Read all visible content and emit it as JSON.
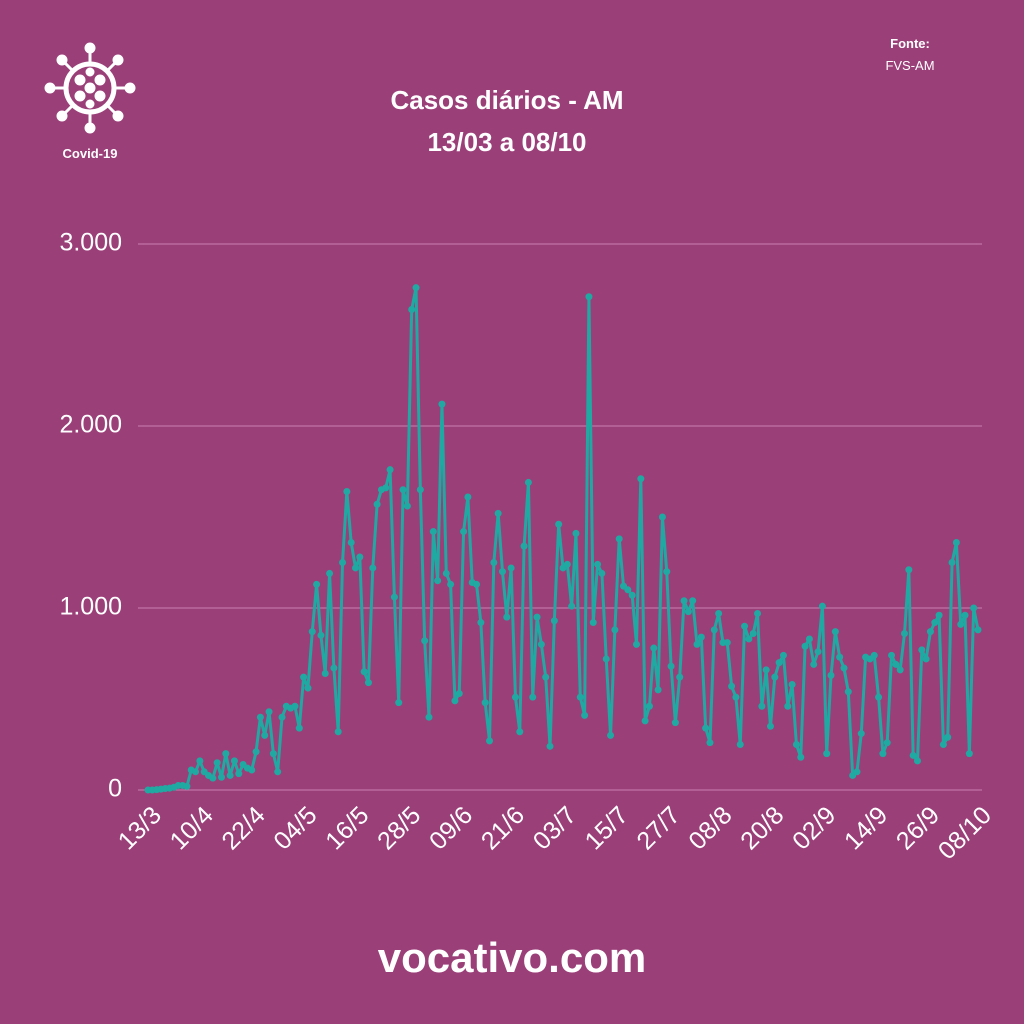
{
  "chart_data": {
    "type": "line",
    "title": "Casos diários - AM",
    "subtitle": "13/03 a 08/10",
    "icon_label": "Covid-19",
    "source_label": "Fonte:",
    "source": "FVS-AM",
    "footer": "vocativo.com",
    "color": "#1fa9a2",
    "grid": true,
    "ylim": [
      0,
      3000
    ],
    "yticks": [
      0,
      {
        "value": 1000,
        "label": "1.000"
      },
      {
        "value": 2000,
        "label": "2.000"
      },
      {
        "value": 3000,
        "label": "3.000"
      }
    ],
    "categories": [
      "13/3",
      null,
      null,
      null,
      null,
      null,
      null,
      null,
      null,
      null,
      null,
      null,
      "10/4",
      null,
      null,
      null,
      null,
      null,
      null,
      null,
      null,
      null,
      null,
      null,
      "22/4",
      null,
      null,
      null,
      null,
      null,
      null,
      null,
      null,
      null,
      null,
      null,
      "04/5",
      null,
      null,
      null,
      null,
      null,
      null,
      null,
      null,
      null,
      null,
      null,
      "16/5",
      null,
      null,
      null,
      null,
      null,
      null,
      null,
      null,
      null,
      null,
      null,
      "28/5",
      null,
      null,
      null,
      null,
      null,
      null,
      null,
      null,
      null,
      null,
      null,
      "09/6",
      null,
      null,
      null,
      null,
      null,
      null,
      null,
      null,
      null,
      null,
      null,
      "21/6",
      null,
      null,
      null,
      null,
      null,
      null,
      null,
      null,
      null,
      null,
      null,
      "03/7",
      null,
      null,
      null,
      null,
      null,
      null,
      null,
      null,
      null,
      null,
      null,
      "15/7",
      null,
      null,
      null,
      null,
      null,
      null,
      null,
      null,
      null,
      null,
      null,
      "27/7",
      null,
      null,
      null,
      null,
      null,
      null,
      null,
      null,
      null,
      null,
      null,
      "08/8",
      null,
      null,
      null,
      null,
      null,
      null,
      null,
      null,
      null,
      null,
      null,
      "20/8",
      null,
      null,
      null,
      null,
      null,
      null,
      null,
      null,
      null,
      null,
      null,
      "02/9",
      null,
      null,
      null,
      null,
      null,
      null,
      null,
      null,
      null,
      null,
      null,
      "14/9",
      null,
      null,
      null,
      null,
      null,
      null,
      null,
      null,
      null,
      null,
      null,
      "26/9",
      null,
      null,
      null,
      null,
      null,
      null,
      null,
      null,
      null,
      null,
      null,
      "08/10"
    ],
    "values": [
      0,
      0,
      2,
      5,
      8,
      10,
      15,
      25,
      25,
      20,
      110,
      100,
      160,
      100,
      80,
      65,
      150,
      70,
      200,
      80,
      160,
      90,
      140,
      120,
      110,
      210,
      400,
      300,
      430,
      200,
      100,
      400,
      460,
      450,
      460,
      340,
      620,
      560,
      870,
      1130,
      850,
      640,
      1190,
      670,
      320,
      1250,
      1640,
      1360,
      1220,
      1280,
      650,
      590,
      1220,
      1570,
      1650,
      1660,
      1760,
      1060,
      480,
      1650,
      1560,
      2640,
      2760,
      1650,
      820,
      400,
      1420,
      1150,
      2120,
      1190,
      1130,
      490,
      530,
      1420,
      1610,
      1140,
      1130,
      920,
      480,
      270,
      1250,
      1520,
      1200,
      950,
      1220,
      510,
      320,
      1340,
      1690,
      510,
      950,
      800,
      620,
      240,
      930,
      1460,
      1220,
      1240,
      1010,
      1410,
      510,
      410,
      2710,
      920,
      1240,
      1190,
      720,
      300,
      880,
      1380,
      1120,
      1100,
      1070,
      800,
      1710,
      380,
      460,
      780,
      550,
      1500,
      1200,
      680,
      370,
      620,
      1040,
      980,
      1040,
      800,
      840,
      340,
      260,
      880,
      970,
      810,
      810,
      570,
      510,
      250,
      900,
      830,
      860,
      970,
      460,
      660,
      350,
      620,
      700,
      740,
      460,
      580,
      250,
      180,
      790,
      830,
      690,
      760,
      1010,
      200,
      630,
      870,
      730,
      670,
      540,
      80,
      100,
      310,
      730,
      720,
      740,
      510,
      200,
      260,
      740,
      690,
      660,
      860,
      1210,
      190,
      160,
      770,
      720,
      870,
      920,
      960,
      250,
      290,
      1250,
      1360,
      910,
      960,
      200,
      1000,
      880
    ]
  }
}
